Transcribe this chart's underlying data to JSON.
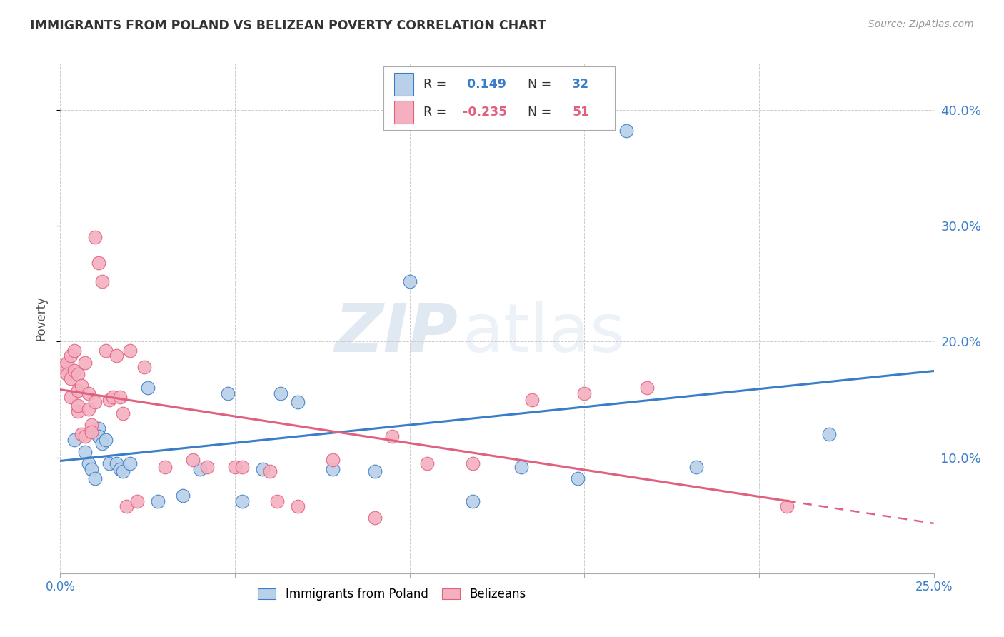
{
  "title": "IMMIGRANTS FROM POLAND VS BELIZEAN POVERTY CORRELATION CHART",
  "source": "Source: ZipAtlas.com",
  "ylabel": "Poverty",
  "xlim": [
    0.0,
    0.25
  ],
  "ylim": [
    0.0,
    0.44
  ],
  "yticks": [
    0.1,
    0.2,
    0.3,
    0.4
  ],
  "ytick_labels": [
    "10.0%",
    "20.0%",
    "30.0%",
    "40.0%"
  ],
  "xticks": [
    0.0,
    0.05,
    0.1,
    0.15,
    0.2,
    0.25
  ],
  "xtick_labels": [
    "0.0%",
    "",
    "",
    "",
    "",
    "25.0%"
  ],
  "blue_label": "Immigrants from Poland",
  "pink_label": "Belizeans",
  "blue_R": "0.149",
  "blue_N": "32",
  "pink_R": "-0.235",
  "pink_N": "51",
  "blue_color": "#b8d0e8",
  "pink_color": "#f4b0bf",
  "blue_line_color": "#3a7dc8",
  "pink_line_color": "#e06080",
  "background_color": "#ffffff",
  "grid_color": "#cccccc",
  "watermark_zip": "ZIP",
  "watermark_atlas": "atlas",
  "blue_x": [
    0.004,
    0.007,
    0.008,
    0.009,
    0.01,
    0.011,
    0.011,
    0.012,
    0.013,
    0.014,
    0.016,
    0.017,
    0.018,
    0.02,
    0.025,
    0.028,
    0.035,
    0.04,
    0.048,
    0.052,
    0.058,
    0.063,
    0.068,
    0.078,
    0.09,
    0.1,
    0.118,
    0.132,
    0.148,
    0.162,
    0.182,
    0.22
  ],
  "blue_y": [
    0.115,
    0.105,
    0.095,
    0.09,
    0.082,
    0.125,
    0.118,
    0.112,
    0.115,
    0.095,
    0.095,
    0.09,
    0.088,
    0.095,
    0.16,
    0.062,
    0.067,
    0.09,
    0.155,
    0.062,
    0.09,
    0.155,
    0.148,
    0.09,
    0.088,
    0.252,
    0.062,
    0.092,
    0.082,
    0.382,
    0.092,
    0.12
  ],
  "pink_x": [
    0.001,
    0.002,
    0.002,
    0.003,
    0.003,
    0.003,
    0.004,
    0.004,
    0.005,
    0.005,
    0.005,
    0.005,
    0.006,
    0.006,
    0.007,
    0.007,
    0.008,
    0.008,
    0.009,
    0.009,
    0.01,
    0.01,
    0.011,
    0.012,
    0.013,
    0.014,
    0.015,
    0.016,
    0.017,
    0.018,
    0.019,
    0.02,
    0.022,
    0.024,
    0.03,
    0.038,
    0.042,
    0.05,
    0.052,
    0.06,
    0.062,
    0.068,
    0.078,
    0.09,
    0.095,
    0.105,
    0.118,
    0.135,
    0.15,
    0.168,
    0.208
  ],
  "pink_y": [
    0.178,
    0.182,
    0.172,
    0.168,
    0.152,
    0.188,
    0.192,
    0.175,
    0.172,
    0.158,
    0.14,
    0.145,
    0.12,
    0.162,
    0.118,
    0.182,
    0.155,
    0.142,
    0.128,
    0.122,
    0.148,
    0.29,
    0.268,
    0.252,
    0.192,
    0.15,
    0.152,
    0.188,
    0.152,
    0.138,
    0.058,
    0.192,
    0.062,
    0.178,
    0.092,
    0.098,
    0.092,
    0.092,
    0.092,
    0.088,
    0.062,
    0.058,
    0.098,
    0.048,
    0.118,
    0.095,
    0.095,
    0.15,
    0.155,
    0.16,
    0.058
  ]
}
